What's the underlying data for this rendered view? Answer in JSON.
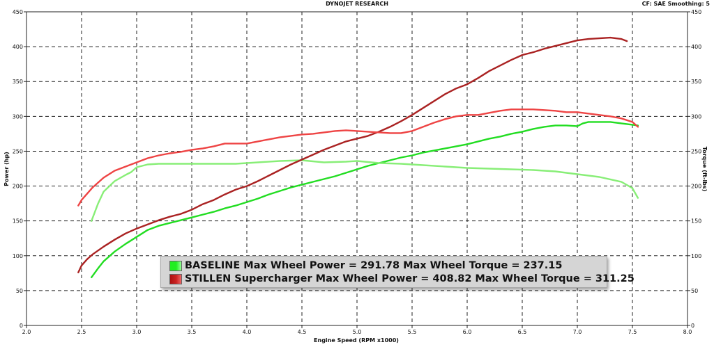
{
  "header": {
    "center": "DYNOJET RESEARCH",
    "right": "CF: SAE  Smoothing: 5"
  },
  "legend": [
    {
      "series": "BASELINE",
      "power_label": "Max Wheel Power =",
      "power_value": "291.78",
      "torque_label": "Max Wheel Torque =",
      "torque_value": "237.15",
      "color": "#22ee22"
    },
    {
      "series": "STILLEN Supercharger",
      "power_label": "Max Wheel Power =",
      "power_value": "408.82",
      "torque_label": "Max Wheel Torque =",
      "torque_value": "311.25",
      "color": "#cc2222"
    }
  ],
  "chart_data": {
    "type": "line",
    "title": "DYNOJET RESEARCH",
    "xlabel": "Engine Speed (RPM x1000)",
    "ylabel": "Power (hp)",
    "y2label": "Torque (ft-lbs)",
    "xlim": [
      2.0,
      8.0
    ],
    "ylim": [
      0,
      450
    ],
    "y2lim": [
      0,
      450
    ],
    "x_ticks": [
      "2.0",
      "2.5",
      "3.0",
      "3.5",
      "4.0",
      "4.5",
      "5.0",
      "5.5",
      "6.0",
      "6.5",
      "7.0",
      "7.5",
      "8.0"
    ],
    "y_ticks": [
      "0",
      "50",
      "100",
      "150",
      "200",
      "250",
      "300",
      "350",
      "400",
      "450"
    ],
    "grid": true,
    "colors": {
      "baseline_power": "#22dd22",
      "baseline_torque": "#88ee77",
      "stillen_power": "#aa2222",
      "stillen_torque": "#ee4444"
    },
    "series": [
      {
        "name": "BASELINE",
        "measure": "power",
        "axis": "left",
        "x": [
          2.59,
          2.65,
          2.7,
          2.8,
          2.9,
          3.0,
          3.1,
          3.2,
          3.3,
          3.4,
          3.5,
          3.6,
          3.7,
          3.8,
          3.9,
          4.0,
          4.1,
          4.2,
          4.3,
          4.4,
          4.5,
          4.6,
          4.7,
          4.8,
          4.9,
          5.0,
          5.1,
          5.2,
          5.3,
          5.4,
          5.5,
          5.6,
          5.7,
          5.8,
          5.9,
          6.0,
          6.1,
          6.2,
          6.3,
          6.4,
          6.5,
          6.6,
          6.7,
          6.8,
          6.9,
          7.0,
          7.05,
          7.1,
          7.2,
          7.3,
          7.4,
          7.5,
          7.55
        ],
        "y": [
          69,
          82,
          92,
          106,
          117,
          127,
          137,
          143,
          147,
          151,
          155,
          159,
          163,
          168,
          172,
          177,
          182,
          188,
          193,
          198,
          202,
          206,
          210,
          214,
          219,
          224,
          229,
          233,
          237,
          241,
          244,
          248,
          251,
          254,
          257,
          260,
          264,
          268,
          271,
          275,
          278,
          282,
          285,
          287,
          287,
          286,
          290,
          292,
          292,
          292,
          290,
          288,
          287
        ]
      },
      {
        "name": "BASELINE",
        "measure": "torque",
        "axis": "right",
        "x": [
          2.59,
          2.65,
          2.7,
          2.8,
          2.9,
          2.95,
          3.0,
          3.1,
          3.2,
          3.3,
          3.5,
          3.7,
          3.9,
          4.1,
          4.3,
          4.5,
          4.7,
          4.9,
          5.0,
          5.2,
          5.4,
          5.6,
          5.8,
          6.0,
          6.2,
          6.4,
          6.6,
          6.8,
          7.0,
          7.2,
          7.4,
          7.5,
          7.55
        ],
        "y": [
          150,
          175,
          192,
          207,
          216,
          220,
          227,
          231,
          232,
          232,
          232,
          232,
          232,
          234,
          236,
          237,
          234,
          235,
          236,
          233,
          232,
          230,
          228,
          226,
          225,
          224,
          223,
          221,
          217,
          213,
          206,
          197,
          183
        ]
      },
      {
        "name": "STILLEN Supercharger",
        "measure": "power",
        "axis": "left",
        "x": [
          2.47,
          2.5,
          2.55,
          2.6,
          2.7,
          2.8,
          2.9,
          3.0,
          3.1,
          3.2,
          3.3,
          3.4,
          3.5,
          3.6,
          3.7,
          3.8,
          3.9,
          4.0,
          4.1,
          4.2,
          4.3,
          4.4,
          4.5,
          4.6,
          4.7,
          4.8,
          4.9,
          5.0,
          5.1,
          5.2,
          5.3,
          5.4,
          5.5,
          5.6,
          5.7,
          5.8,
          5.9,
          6.0,
          6.1,
          6.2,
          6.3,
          6.4,
          6.5,
          6.6,
          6.7,
          6.8,
          6.9,
          7.0,
          7.1,
          7.2,
          7.3,
          7.4,
          7.45
        ],
        "y": [
          76,
          86,
          95,
          102,
          113,
          123,
          132,
          139,
          145,
          151,
          156,
          160,
          166,
          174,
          180,
          188,
          195,
          200,
          207,
          215,
          223,
          231,
          238,
          245,
          252,
          258,
          264,
          268,
          272,
          278,
          285,
          293,
          302,
          312,
          322,
          332,
          340,
          346,
          355,
          365,
          373,
          381,
          388,
          392,
          397,
          401,
          405,
          409,
          411,
          412,
          413,
          411,
          408
        ]
      },
      {
        "name": "STILLEN Supercharger",
        "measure": "torque",
        "axis": "right",
        "x": [
          2.47,
          2.5,
          2.6,
          2.7,
          2.8,
          2.9,
          3.0,
          3.1,
          3.2,
          3.3,
          3.4,
          3.5,
          3.6,
          3.7,
          3.8,
          3.9,
          4.0,
          4.1,
          4.2,
          4.3,
          4.4,
          4.5,
          4.6,
          4.7,
          4.8,
          4.9,
          5.0,
          5.1,
          5.2,
          5.3,
          5.4,
          5.5,
          5.6,
          5.7,
          5.8,
          5.9,
          6.0,
          6.1,
          6.2,
          6.3,
          6.4,
          6.5,
          6.6,
          6.7,
          6.8,
          6.9,
          7.0,
          7.1,
          7.2,
          7.3,
          7.4,
          7.5,
          7.55
        ],
        "y": [
          172,
          180,
          198,
          212,
          222,
          228,
          234,
          240,
          244,
          247,
          249,
          252,
          254,
          257,
          261,
          261,
          261,
          264,
          267,
          270,
          272,
          274,
          275,
          277,
          279,
          280,
          279,
          278,
          277,
          276,
          276,
          279,
          285,
          291,
          296,
          300,
          302,
          302,
          305,
          308,
          310,
          310,
          310,
          309,
          308,
          306,
          306,
          304,
          302,
          300,
          297,
          292,
          285
        ]
      }
    ]
  }
}
